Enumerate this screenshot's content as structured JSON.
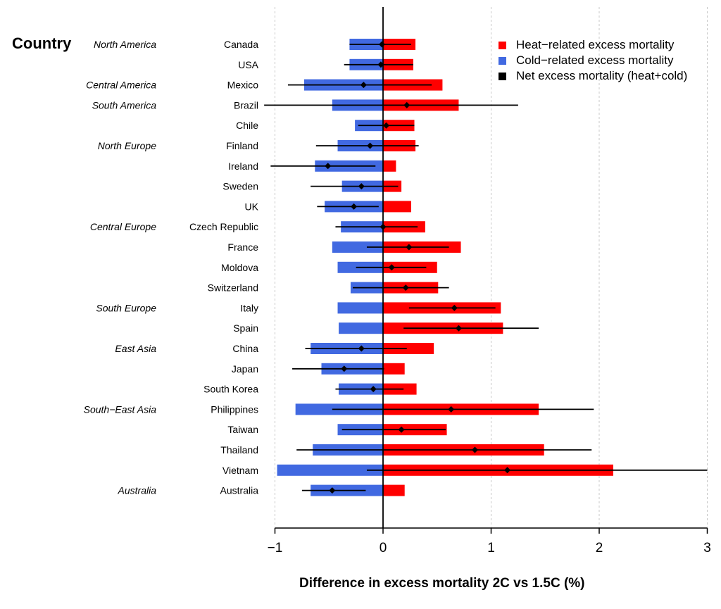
{
  "chart_data": {
    "type": "bar",
    "title": "",
    "xlabel": "Difference in excess mortality 2C vs 1.5C (%)",
    "ylabel": "Country",
    "xlim": [
      -1,
      3
    ],
    "x_ticks": [
      -1,
      0,
      1,
      2,
      3
    ],
    "x_tick_labels": [
      "−1",
      "0",
      "1",
      "2",
      "3"
    ],
    "grid": "vertical dashed at x ticks",
    "legend": {
      "placement": "top-right",
      "entries": [
        {
          "label": "Heat−related excess mortality",
          "color": "#ff0000"
        },
        {
          "label": "Cold−related excess mortality",
          "color": "#4169e1"
        },
        {
          "label": "Net excess mortality (heat+cold)",
          "color": "#000000"
        }
      ]
    },
    "categories": [
      "Canada",
      "USA",
      "Mexico",
      "Brazil",
      "Chile",
      "Finland",
      "Ireland",
      "Sweden",
      "UK",
      "Czech Republic",
      "France",
      "Moldova",
      "Switzerland",
      "Italy",
      "Spain",
      "China",
      "Japan",
      "South Korea",
      "Philippines",
      "Taiwan",
      "Thailand",
      "Vietnam",
      "Australia"
    ],
    "regions": [
      {
        "label": "North America",
        "row": 0
      },
      {
        "label": "Central America",
        "row": 2
      },
      {
        "label": "South America",
        "row": 3
      },
      {
        "label": "North Europe",
        "row": 5
      },
      {
        "label": "Central Europe",
        "row": 9
      },
      {
        "label": "South Europe",
        "row": 13
      },
      {
        "label": "East Asia",
        "row": 15
      },
      {
        "label": "South−East Asia",
        "row": 18
      },
      {
        "label": "Australia",
        "row": 22
      }
    ],
    "series": [
      {
        "name": "Heat−related excess mortality",
        "color": "#ff0000",
        "values": [
          0.3,
          0.28,
          0.55,
          0.7,
          0.29,
          0.3,
          0.12,
          0.17,
          0.26,
          0.39,
          0.72,
          0.5,
          0.51,
          1.09,
          1.11,
          0.47,
          0.2,
          0.31,
          1.44,
          0.59,
          1.49,
          2.13,
          0.2
        ]
      },
      {
        "name": "Cold−related excess mortality",
        "color": "#4169e1",
        "values": [
          -0.31,
          -0.31,
          -0.73,
          -0.47,
          -0.26,
          -0.42,
          -0.63,
          -0.38,
          -0.54,
          -0.39,
          -0.47,
          -0.42,
          -0.3,
          -0.42,
          -0.41,
          -0.67,
          -0.57,
          -0.41,
          -0.81,
          -0.42,
          -0.65,
          -0.98,
          -0.67
        ]
      },
      {
        "name": "Net excess mortality (heat+cold)",
        "color": "#000000",
        "values": [
          -0.01,
          -0.02,
          -0.18,
          0.22,
          0.03,
          -0.12,
          -0.51,
          -0.2,
          -0.27,
          0.0,
          0.24,
          0.08,
          0.21,
          0.66,
          0.7,
          -0.2,
          -0.36,
          -0.09,
          0.63,
          0.17,
          0.85,
          1.15,
          -0.47
        ],
        "ci_low": [
          -0.31,
          -0.36,
          -0.88,
          -1.1,
          -0.23,
          -0.62,
          -1.04,
          -0.67,
          -0.61,
          -0.44,
          -0.15,
          -0.25,
          -0.28,
          0.24,
          0.19,
          -0.72,
          -0.84,
          -0.44,
          -0.47,
          -0.38,
          -0.8,
          -0.15,
          -0.75
        ],
        "ci_high": [
          0.26,
          0.28,
          0.45,
          1.25,
          0.29,
          0.33,
          -0.07,
          0.14,
          -0.04,
          0.32,
          0.61,
          0.4,
          0.61,
          1.04,
          1.44,
          0.22,
          0.01,
          0.19,
          1.95,
          0.58,
          1.93,
          3.0,
          -0.16
        ]
      }
    ]
  },
  "labels": {
    "country_header": "Country"
  }
}
